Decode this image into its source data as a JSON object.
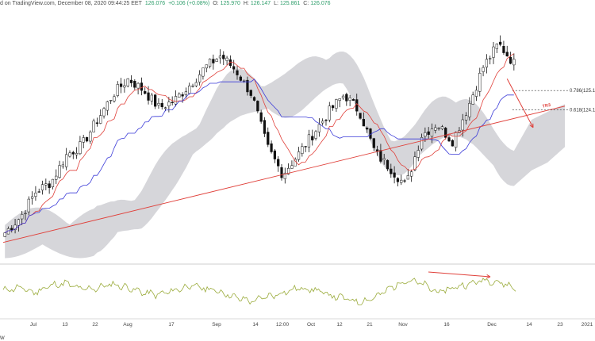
{
  "header": {
    "title": "d on TradingView.com, December 08, 2020 09:44:25 EET",
    "open_prefix": "126.076",
    "change": "+0.106 (+0.08%)",
    "o_label": "O:",
    "o_value": "125.970",
    "h_label": "H:",
    "h_value": "126.147",
    "l_label": "L:",
    "l_value": "125.861",
    "c_label": "C:",
    "c_value": "126.076"
  },
  "corner_label": "W",
  "colors": {
    "up": "#ffffff",
    "down": "#111111",
    "tenkan": "#e0403a",
    "kijun": "#3b3bd8",
    "cloud": "#cfcfd4",
    "trend": "#e0403a",
    "oscillator": "#9aab3a",
    "fib": "#333333"
  },
  "chart_data": {
    "type": "candlestick",
    "x_ticks": [
      "Jul",
      "13",
      "22",
      "Aug",
      "17",
      "Sep",
      "14",
      "12:00",
      "Oct",
      "12",
      "21",
      "Nov",
      "16",
      "Dec",
      "14",
      "23",
      "2021"
    ],
    "fib_levels": [
      {
        "label": "0.786(125.1",
        "value": 125.1
      },
      {
        "label": "0.618(124.1",
        "value": 124.1
      }
    ],
    "trendline_label": "TR3",
    "closes": [
      117.8,
      118.6,
      119.9,
      120.4,
      121.8,
      122.3,
      123.6,
      124.9,
      125.7,
      125.1,
      124.2,
      124.6,
      125.4,
      126.3,
      126.9,
      126.1,
      124.9,
      122.2,
      120.8,
      121.8,
      122.9,
      124.0,
      124.9,
      124.0,
      121.9,
      121.1,
      120.2,
      122.8,
      123.4,
      122.5,
      124.2,
      126.3,
      127.5,
      126.5
    ]
  },
  "oscillator": {
    "values": [
      0.55,
      0.62,
      0.5,
      0.66,
      0.72,
      0.58,
      0.6,
      0.7,
      0.62,
      0.5,
      0.45,
      0.55,
      0.66,
      0.6,
      0.52,
      0.38,
      0.3,
      0.4,
      0.5,
      0.6,
      0.58,
      0.44,
      0.36,
      0.28,
      0.4,
      0.62,
      0.8,
      0.7,
      0.5,
      0.62,
      0.7,
      0.8,
      0.74,
      0.6
    ]
  }
}
